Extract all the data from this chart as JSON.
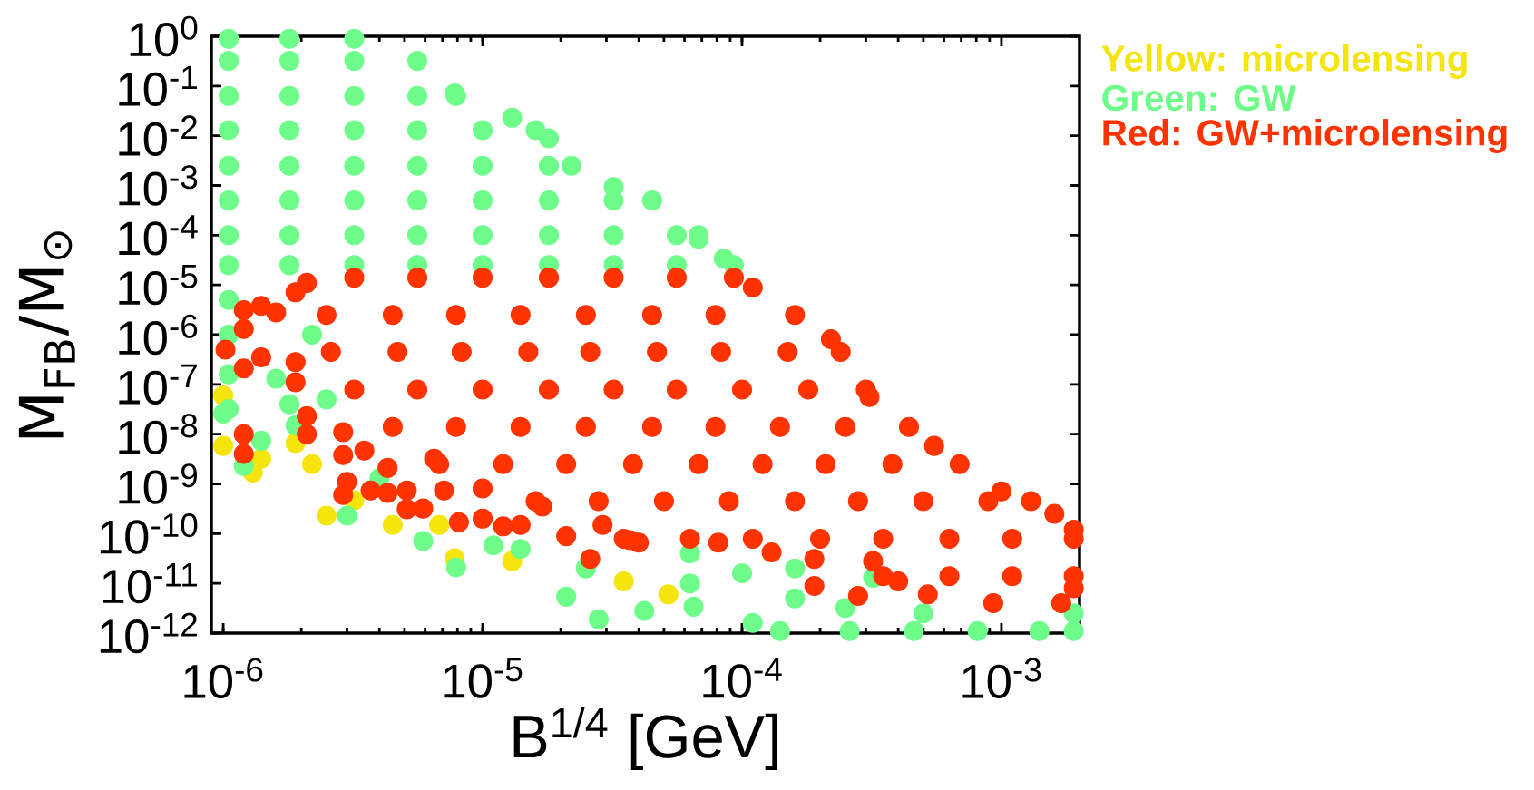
{
  "chart_data": {
    "type": "scatter",
    "xlabel": "B$^{1/4}$ [GeV]",
    "ylabel": "M$_{FB}$/M$_{⊙}$",
    "log": "xy",
    "legend": "top right",
    "xlim": [
      9e-07,
      0.002
    ],
    "ylim": [
      1e-12,
      1
    ],
    "xticks": [
      {
        "value": 1e-06,
        "label": "10$^{-6}$"
      },
      {
        "value": 1e-05,
        "label": "10$^{-5}$"
      },
      {
        "value": 0.0001,
        "label": "10$^{-4}$"
      },
      {
        "value": 0.001,
        "label": "10$^{-3}$"
      }
    ],
    "yticks": [
      {
        "value": 1,
        "label": "10$^{0}$"
      },
      {
        "value": 0.1,
        "label": "10$^{-1}$"
      },
      {
        "value": 0.01,
        "label": "10$^{-2}$"
      },
      {
        "value": 0.001,
        "label": "10$^{-3}$"
      },
      {
        "value": 0.0001,
        "label": "10$^{-4}$"
      },
      {
        "value": 1e-05,
        "label": "10$^{-5}$"
      },
      {
        "value": 1e-06,
        "label": "10$^{-6}$"
      },
      {
        "value": 1e-07,
        "label": "10$^{-7}$"
      },
      {
        "value": 1e-08,
        "label": "10$^{-8}$"
      },
      {
        "value": 1e-09,
        "label": "10$^{-9}$"
      },
      {
        "value": 1e-10,
        "label": "10$^{-10}$"
      },
      {
        "value": 1e-11,
        "label": "10$^{-11}$"
      },
      {
        "value": 1e-12,
        "label": "10$^{-12}$"
      }
    ],
    "series": [
      {
        "name": "Yellow: microlensing",
        "color": "#f5e50c",
        "x": [
          1e-06,
          1e-06,
          1.3e-06,
          1.4e-06,
          1.9e-06,
          2.2e-06,
          2.5e-06,
          3.2e-06,
          4.5e-06,
          6.8e-06,
          7.8e-06,
          1.3e-05,
          3.5e-05,
          5.2e-05
        ],
        "values": [
          6e-08,
          5.8e-09,
          1.7e-09,
          3.2e-09,
          6.6e-09,
          2.5e-09,
          2.3e-10,
          4.7e-10,
          1.5e-10,
          1.5e-10,
          3.2e-11,
          2.8e-11,
          1.1e-11,
          6e-12
        ]
      },
      {
        "name": "Green: GW",
        "color": "#6efd8b",
        "x": [
          1.05e-06,
          1.8e-06,
          3.2e-06,
          1.05e-06,
          1.8e-06,
          3.2e-06,
          5.6e-06,
          1.05e-06,
          1.8e-06,
          3.2e-06,
          5.6e-06,
          7.9e-06,
          1.05e-06,
          1.8e-06,
          3.2e-06,
          5.6e-06,
          1e-05,
          1.6e-05,
          1.05e-06,
          1.8e-06,
          3.2e-06,
          5.6e-06,
          1e-05,
          1.8e-05,
          2.2e-05,
          1.05e-06,
          1.8e-06,
          3.2e-06,
          5.6e-06,
          1e-05,
          1.8e-05,
          3.2e-05,
          4.5e-05,
          1.05e-06,
          1.8e-06,
          3.2e-06,
          5.6e-06,
          1e-05,
          1.8e-05,
          3.2e-05,
          5.6e-05,
          6.8e-05,
          1.05e-06,
          1.8e-06,
          3.2e-06,
          5.6e-06,
          1e-05,
          1.8e-05,
          3.2e-05,
          5.6e-05,
          9.3e-05,
          1.3e-05,
          1.8e-05,
          3.2e-05,
          6.8e-05,
          8.5e-05,
          7.8e-06,
          1.05e-06,
          1.05e-06,
          1.05e-06,
          1.05e-06,
          1.6e-06,
          2.2e-06,
          1.8e-06,
          1e-06,
          1.2e-06,
          1.4e-06,
          1.9e-06,
          2.5e-06,
          3e-06,
          4e-06,
          5.9e-06,
          7.9e-06,
          1.1e-05,
          1.4e-05,
          2.1e-05,
          2.8e-05,
          2.5e-05,
          4.2e-05,
          6.3e-05,
          6.5e-05,
          0.0001,
          0.00011,
          0.00014,
          0.00016,
          0.00026,
          0.00025,
          0.00046,
          0.0005,
          0.00081,
          0.0014,
          0.0019,
          0.0019,
          0.00032,
          6.3e-05,
          0.00016
        ],
        "values": [
          0.89,
          0.89,
          0.89,
          0.32,
          0.32,
          0.32,
          0.32,
          0.063,
          0.063,
          0.063,
          0.063,
          0.063,
          0.013,
          0.013,
          0.013,
          0.013,
          0.013,
          0.013,
          0.0025,
          0.0025,
          0.0025,
          0.0025,
          0.0025,
          0.0025,
          0.0025,
          0.0005,
          0.0005,
          0.0005,
          0.0005,
          0.0005,
          0.0005,
          0.0005,
          0.0005,
          0.0001,
          0.0001,
          0.0001,
          0.0001,
          0.0001,
          0.0001,
          0.0001,
          0.0001,
          0.0001,
          2.5e-05,
          2.5e-05,
          2.5e-05,
          2.5e-05,
          2.5e-05,
          2.5e-05,
          2.5e-05,
          2.5e-05,
          2.5e-05,
          0.023,
          0.0089,
          0.00093,
          8.5e-05,
          3.4e-05,
          0.071,
          5e-06,
          1e-06,
          1.6e-07,
          3.2e-08,
          1.3e-07,
          1e-06,
          4e-08,
          2.6e-08,
          2.3e-09,
          7.4e-09,
          1.5e-08,
          5e-08,
          2.3e-10,
          1.3e-09,
          7.1e-11,
          2.1e-11,
          5.8e-11,
          4.9e-11,
          5.4e-12,
          1.9e-12,
          2e-11,
          2.8e-12,
          1e-11,
          3.4e-12,
          1.6e-11,
          1.6e-12,
          1.1e-12,
          5e-12,
          1.1e-12,
          3.2e-12,
          1.1e-12,
          2.5e-12,
          1.1e-12,
          1.1e-12,
          1.1e-12,
          2.5e-12,
          1.3e-11,
          4e-11,
          2e-11
        ]
      },
      {
        "name": "Red: GW+microlensing",
        "color": "#fe3300",
        "x": [
          3.2e-06,
          5.6e-06,
          1e-05,
          1.8e-05,
          3.2e-05,
          5.6e-05,
          9.3e-05,
          2.5e-06,
          4.5e-06,
          7.9e-06,
          1.4e-05,
          2.5e-05,
          4.5e-05,
          7.9e-05,
          0.00016,
          2.6e-06,
          4.7e-06,
          8.3e-06,
          1.5e-05,
          2.6e-05,
          4.7e-05,
          8.3e-05,
          0.00015,
          0.00024,
          3.2e-06,
          5.6e-06,
          1e-05,
          1.8e-05,
          3.2e-05,
          5.6e-05,
          0.0001,
          0.00018,
          0.0003,
          4.5e-06,
          7.9e-06,
          1.4e-05,
          2.5e-05,
          4.5e-05,
          7.9e-05,
          0.00014,
          0.00025,
          0.00044,
          6.8e-06,
          1.2e-05,
          2.1e-05,
          3.8e-05,
          6.8e-05,
          0.00012,
          0.00021,
          0.00038,
          0.00069,
          1.6e-05,
          2.8e-05,
          5e-05,
          8.9e-05,
          0.00016,
          0.00028,
          0.0005,
          0.00089,
          0.0013,
          3.5e-05,
          6.3e-05,
          0.00011,
          0.0002,
          0.00035,
          0.00063,
          0.0011,
          0.0019,
          0.00035,
          0.00063,
          0.0011,
          0.0019,
          0.00093,
          0.0017,
          0.00011,
          0.00022,
          0.00031,
          0.00055,
          0.001,
          0.0016,
          0.0019,
          0.00013,
          0.00052,
          0.0019,
          2.1e-06,
          1.9e-06,
          1.2e-06,
          1.4e-06,
          1.6e-06,
          1.2e-06,
          1.02e-06,
          1.2e-06,
          1.4e-06,
          1.9e-06,
          1.9e-06,
          2.1e-06,
          2.1e-06,
          1.2e-06,
          1.2e-06,
          2.9e-06,
          2.9e-06,
          3e-06,
          2.9e-06,
          3.5e-06,
          3.7e-06,
          4.3e-06,
          4.3e-06,
          5.1e-06,
          5.1e-06,
          5.9e-06,
          7.1e-06,
          8.1e-06,
          1e-05,
          1.2e-05,
          1.4e-05,
          2.1e-05,
          2.6e-05,
          3.7e-05,
          0.00019,
          0.00028,
          6.5e-06,
          1e-05,
          1.7e-05,
          2.9e-05,
          4e-05,
          8.1e-05,
          0.00019,
          0.00032,
          0.0004
        ],
        "values": [
          1.4e-05,
          1.4e-05,
          1.4e-05,
          1.4e-05,
          1.4e-05,
          1.4e-05,
          1.4e-05,
          2.5e-06,
          2.5e-06,
          2.5e-06,
          2.5e-06,
          2.5e-06,
          2.5e-06,
          2.5e-06,
          2.5e-06,
          4.5e-07,
          4.5e-07,
          4.5e-07,
          4.5e-07,
          4.5e-07,
          4.5e-07,
          4.5e-07,
          4.5e-07,
          4.5e-07,
          7.9e-08,
          7.9e-08,
          7.9e-08,
          7.9e-08,
          7.9e-08,
          7.9e-08,
          7.9e-08,
          7.9e-08,
          7.9e-08,
          1.4e-08,
          1.4e-08,
          1.4e-08,
          1.4e-08,
          1.4e-08,
          1.4e-08,
          1.4e-08,
          1.4e-08,
          1.4e-08,
          2.5e-09,
          2.5e-09,
          2.5e-09,
          2.5e-09,
          2.5e-09,
          2.5e-09,
          2.5e-09,
          2.5e-09,
          2.5e-09,
          4.5e-10,
          4.5e-10,
          4.5e-10,
          4.5e-10,
          4.5e-10,
          4.5e-10,
          4.5e-10,
          4.5e-10,
          4.5e-10,
          7.9e-11,
          7.9e-11,
          7.9e-11,
          7.9e-11,
          7.9e-11,
          7.9e-11,
          7.9e-11,
          7.9e-11,
          1.4e-11,
          1.4e-11,
          1.4e-11,
          1.4e-11,
          4e-12,
          4e-12,
          8.9e-06,
          8.1e-07,
          5.6e-08,
          5.8e-09,
          7.1e-10,
          2.5e-10,
          1.2e-10,
          4.2e-11,
          6e-12,
          8e-12,
          1.1e-05,
          7.1e-06,
          3.1e-06,
          3.8e-06,
          2.8e-06,
          1.3e-06,
          5e-07,
          2.1e-07,
          3.5e-07,
          2.8e-07,
          1.1e-07,
          2.3e-08,
          1e-08,
          1e-08,
          4e-09,
          1.1e-08,
          3.8e-09,
          1.1e-09,
          6e-10,
          4.7e-09,
          7.4e-10,
          6.6e-10,
          2.1e-09,
          7.4e-10,
          3.1e-10,
          3.2e-10,
          7.4e-10,
          1.7e-10,
          2e-10,
          1.4e-10,
          1.5e-10,
          8.9e-11,
          3.1e-11,
          7.4e-11,
          8.9e-12,
          5.6e-12,
          3.2e-09,
          8.1e-10,
          3.5e-10,
          1.5e-10,
          6.6e-11,
          6.6e-11,
          3.1e-11,
          2.8e-11,
          1.1e-11
        ]
      }
    ]
  }
}
